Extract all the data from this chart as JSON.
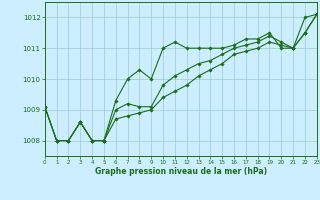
{
  "bg_color": "#cceeff",
  "grid_color": "#99cccc",
  "line_color": "#1a6e1a",
  "xlim": [
    0,
    23
  ],
  "ylim": [
    1007.5,
    1012.5
  ],
  "yticks": [
    1008,
    1009,
    1010,
    1011,
    1012
  ],
  "xticks": [
    0,
    1,
    2,
    3,
    4,
    5,
    6,
    7,
    8,
    9,
    10,
    11,
    12,
    13,
    14,
    15,
    16,
    17,
    18,
    19,
    20,
    21,
    22,
    23
  ],
  "xlabel": "Graphe pression niveau de la mer (hPa)",
  "series": [
    [
      1009.1,
      1008.0,
      1008.0,
      1008.6,
      1008.0,
      1008.0,
      1009.3,
      1010.0,
      1010.3,
      1010.0,
      1011.0,
      1011.2,
      1011.0,
      1011.0,
      1011.0,
      1011.0,
      1011.1,
      1011.3,
      1011.3,
      1011.5,
      1011.0,
      1011.0,
      1012.0,
      1012.1
    ],
    [
      1009.1,
      1008.0,
      1008.0,
      1008.6,
      1008.0,
      1008.0,
      1009.0,
      1009.2,
      1009.1,
      1009.1,
      1009.8,
      1010.1,
      1010.3,
      1010.5,
      1010.6,
      1010.8,
      1011.0,
      1011.1,
      1011.2,
      1011.4,
      1011.2,
      1011.0,
      1011.5,
      1012.1
    ],
    [
      1009.1,
      1008.0,
      1008.0,
      1008.6,
      1008.0,
      1008.0,
      1008.7,
      1008.8,
      1008.9,
      1009.0,
      1009.4,
      1009.6,
      1009.8,
      1010.1,
      1010.3,
      1010.5,
      1010.8,
      1010.9,
      1011.0,
      1011.2,
      1011.1,
      1011.0,
      1011.5,
      1012.1
    ]
  ]
}
